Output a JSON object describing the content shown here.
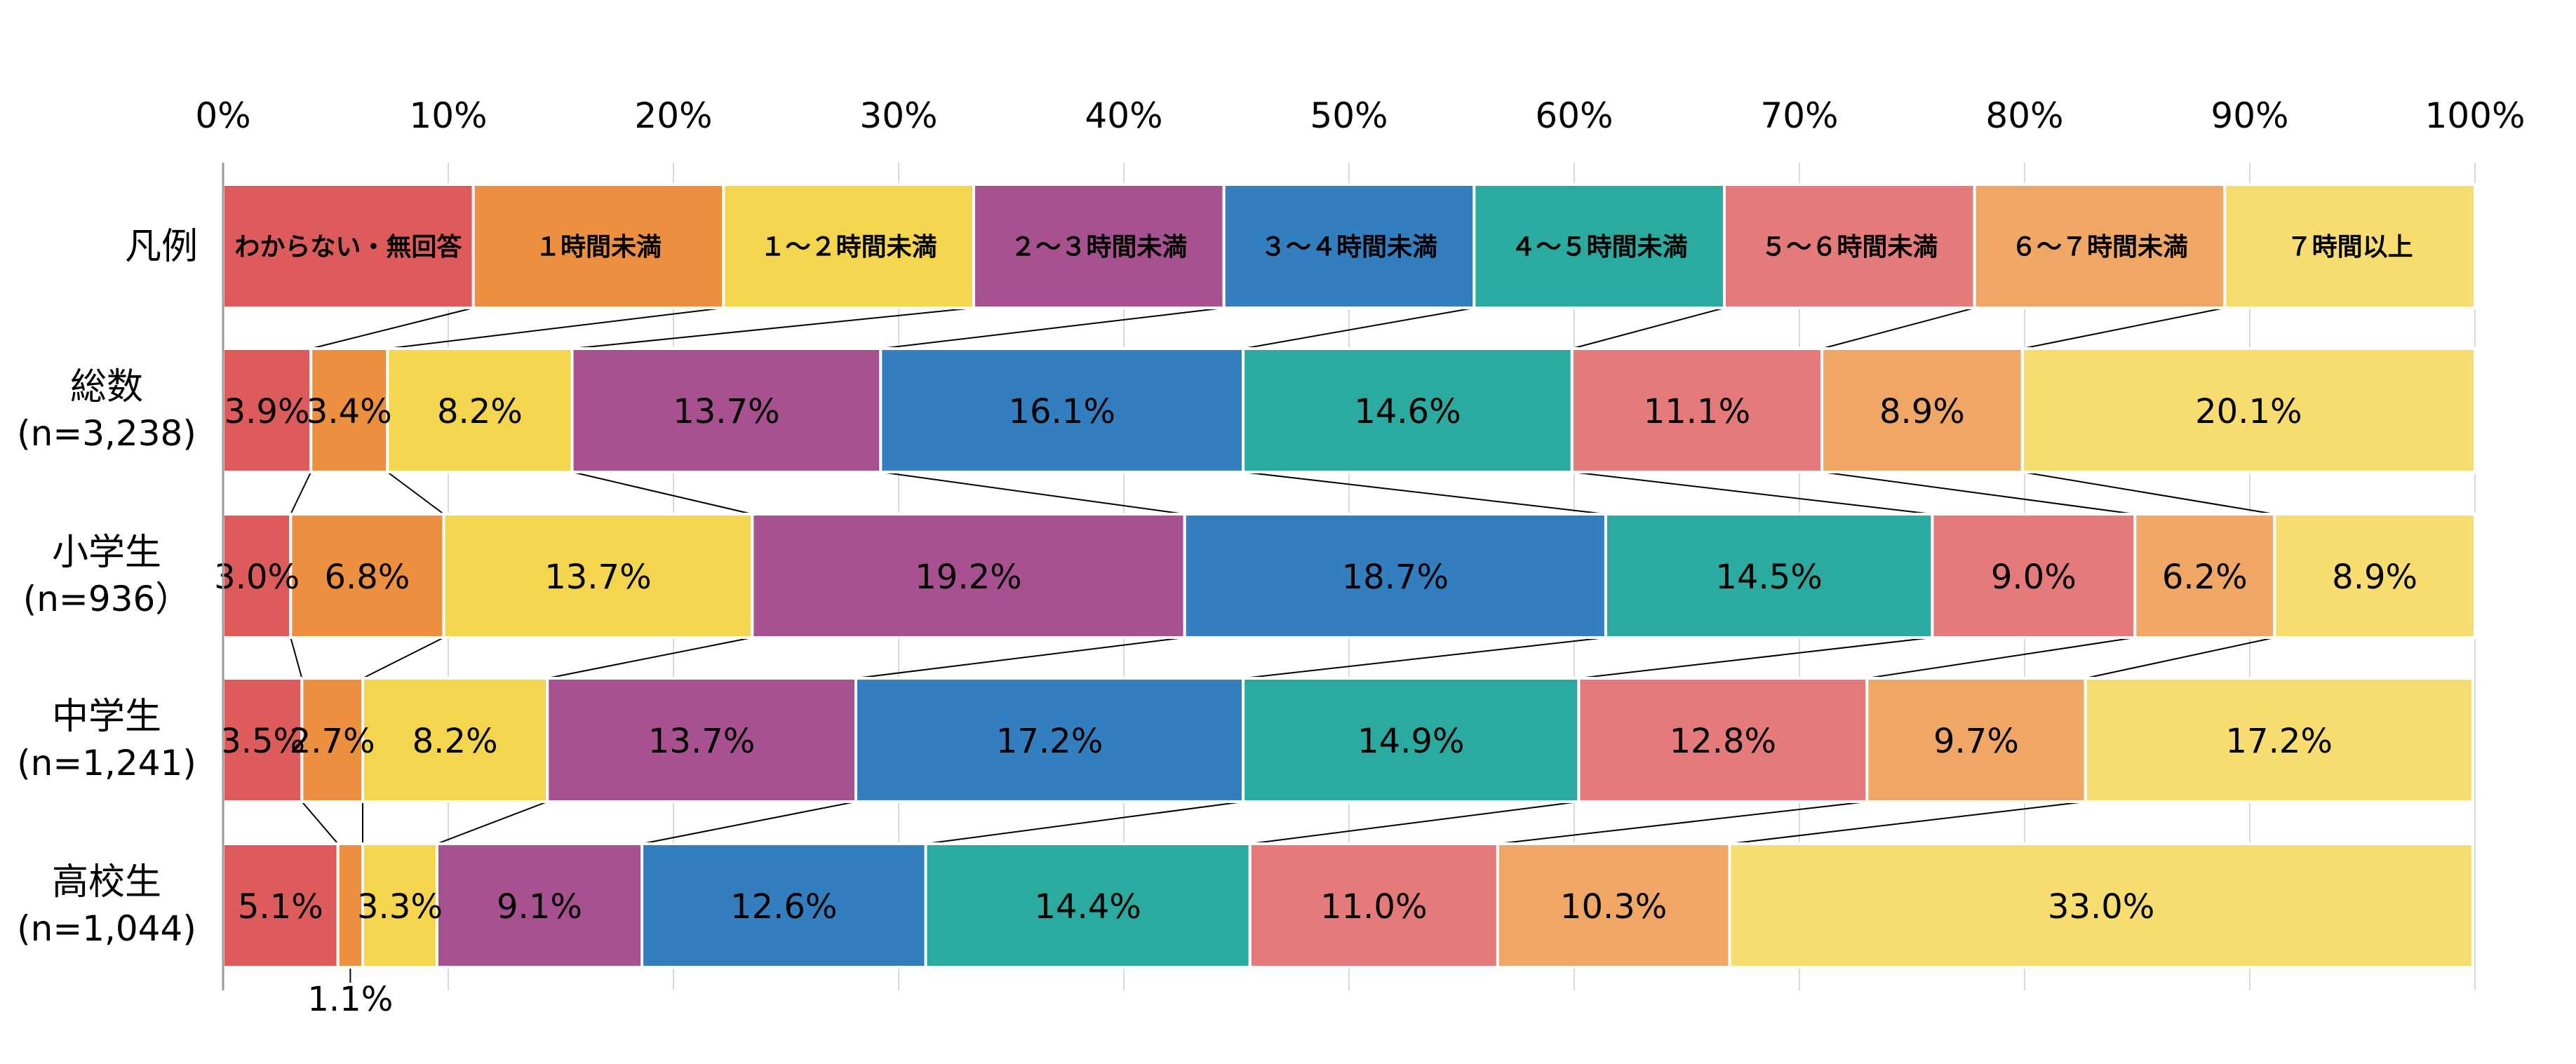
{
  "chart_data": {
    "type": "bar",
    "stacked": true,
    "orientation": "horizontal",
    "percent_stacked": true,
    "xlim": [
      0,
      100
    ],
    "x_ticks": [
      "0%",
      "10%",
      "20%",
      "30%",
      "40%",
      "50%",
      "60%",
      "70%",
      "80%",
      "90%",
      "100%"
    ],
    "grid": true,
    "legend_row_label": "凡例",
    "categories": [
      {
        "name": "総数",
        "n": "(n=3,238)"
      },
      {
        "name": "小学生",
        "n": "(n=936）"
      },
      {
        "name": "中学生",
        "n": "(n=1,241)"
      },
      {
        "name": "高校生",
        "n": "(n=1,044)"
      }
    ],
    "series": [
      {
        "name": "わからない・無回答",
        "color": "#DE5B5B",
        "values": [
          3.9,
          3.0,
          3.5,
          5.1
        ],
        "labels": [
          "3.9%",
          "3.0%",
          "3.5%",
          "5.1%"
        ]
      },
      {
        "name": "１時間未満",
        "color": "#EC9040",
        "values": [
          3.4,
          6.8,
          2.7,
          1.1
        ],
        "labels": [
          "3.4%",
          "6.8%",
          "2.7%",
          "1.1%"
        ]
      },
      {
        "name": "１～２時間未満",
        "color": "#F3D54E",
        "values": [
          8.2,
          13.7,
          8.2,
          3.3
        ],
        "labels": [
          "8.2%",
          "13.7%",
          "8.2%",
          "3.3%"
        ]
      },
      {
        "name": "２～３時間未満",
        "color": "#A85191",
        "values": [
          13.7,
          19.2,
          13.7,
          9.1
        ],
        "labels": [
          "13.7%",
          "19.2%",
          "13.7%",
          "9.1%"
        ]
      },
      {
        "name": "３～４時間未満",
        "color": "#337EBF",
        "values": [
          16.1,
          18.7,
          17.2,
          12.6
        ],
        "labels": [
          "16.1%",
          "18.7%",
          "17.2%",
          "12.6%"
        ]
      },
      {
        "name": "４～５時間未満",
        "color": "#2BAB9F",
        "values": [
          14.6,
          14.5,
          14.9,
          14.4
        ],
        "labels": [
          "14.6%",
          "14.5%",
          "14.9%",
          "14.4%"
        ]
      },
      {
        "name": "５～６時間未満",
        "color": "#E47A7A",
        "values": [
          11.1,
          9.0,
          12.8,
          11.0
        ],
        "labels": [
          "11.1%",
          "9.0%",
          "12.8%",
          "11.0%"
        ]
      },
      {
        "name": "６～７時間未満",
        "color": "#F0A765",
        "values": [
          8.9,
          6.2,
          9.7,
          10.3
        ],
        "labels": [
          "8.9%",
          "6.2%",
          "9.7%",
          "10.3%"
        ]
      },
      {
        "name": "７時間以上",
        "color": "#F7DC6F",
        "values": [
          20.1,
          8.9,
          17.2,
          33.0
        ],
        "labels": [
          "20.1%",
          "8.9%",
          "17.2%",
          "33.0%"
        ]
      }
    ]
  }
}
